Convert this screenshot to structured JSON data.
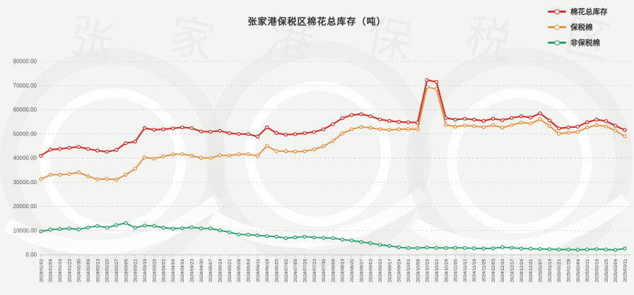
{
  "title": "张家港保税区棉花总库存（吨）",
  "legend": [
    {
      "label": "棉花总库存",
      "color": "#d5342b"
    },
    {
      "label": "保税棉",
      "color": "#e8913f"
    },
    {
      "label": "非保税棉",
      "color": "#27a169"
    }
  ],
  "watermark": {
    "text": "张家港保税区",
    "color": "#e7e7e6"
  },
  "chart_data": {
    "type": "line",
    "title": "张家港保税区棉花总库存（吨）",
    "ylabel": "",
    "xlabel": "",
    "ylim": [
      0,
      80000
    ],
    "grid": "horizontal-dashed",
    "legend_position": "top-right",
    "x_label_rotation": 90,
    "y_ticks": [
      "0.00",
      "10000.00",
      "20000.00",
      "30000.00",
      "40000.00",
      "50000.00",
      "60000.00",
      "70000.00",
      "80000.00"
    ],
    "x": [
      "2024/01/02",
      "2024/01/09",
      "2024/01/16",
      "2024/01/23",
      "2024/01/30",
      "2024/02/06",
      "2024/02/13",
      "2024/02/20",
      "2024/02/27",
      "2024/03/05",
      "2024/03/12",
      "2024/03/19",
      "2024/03/26",
      "2024/04/02",
      "2024/04/09",
      "2024/04/16",
      "2024/04/23",
      "2024/04/30",
      "2024/05/07",
      "2024/05/14",
      "2024/05/21",
      "2024/05/28",
      "2024/06/04",
      "2024/06/11",
      "2024/06/18",
      "2024/06/25",
      "2024/07/02",
      "2024/07/09",
      "2024/07/16",
      "2024/07/23",
      "2024/07/30",
      "2024/08/06",
      "2024/08/13",
      "2024/08/20",
      "2024/08/27",
      "2024/09/03",
      "2024/09/10",
      "2024/09/17",
      "2024/09/24",
      "2024/10/01",
      "2024/10/08",
      "2024/10/15",
      "2024/10/22",
      "2024/10/29",
      "2024/11/05",
      "2024/11/12",
      "2024/11/19",
      "2024/11/26",
      "2024/12/03",
      "2024/12/10",
      "2024/12/17",
      "2024/12/24",
      "2024/12/31",
      "2025/01/07",
      "2025/01/14",
      "2025/01/21",
      "2025/01/28",
      "2025/02/04",
      "2025/02/11",
      "2025/02/18",
      "2025/02/25",
      "2025/03/04",
      "2025/03/11"
    ],
    "series": [
      {
        "name": "棉花总库存",
        "color": "#d5342b",
        "values": [
          41000,
          43500,
          43800,
          44300,
          44600,
          43800,
          43100,
          42600,
          43400,
          46200,
          46800,
          52400,
          51700,
          51900,
          52300,
          52700,
          52400,
          51000,
          50900,
          51300,
          50300,
          50000,
          49900,
          48900,
          52700,
          50400,
          49700,
          49900,
          50300,
          50800,
          51900,
          54000,
          56500,
          57800,
          58200,
          57300,
          56000,
          55400,
          55000,
          54800,
          54700,
          72300,
          71500,
          56600,
          55900,
          56300,
          55900,
          55400,
          56300,
          55700,
          56600,
          57300,
          56800,
          58500,
          55600,
          52300,
          52700,
          53000,
          54800,
          55900,
          55300,
          53400,
          51600
        ]
      },
      {
        "name": "保税棉",
        "color": "#e8913f",
        "values": [
          31300,
          33100,
          33100,
          33400,
          34100,
          32500,
          31200,
          31400,
          31100,
          33100,
          35600,
          40300,
          39800,
          40700,
          41500,
          41700,
          41000,
          40100,
          40000,
          41200,
          41000,
          41600,
          41600,
          40900,
          45000,
          42900,
          42800,
          42700,
          42800,
          43600,
          44900,
          47100,
          50200,
          51900,
          52900,
          52500,
          51900,
          51700,
          51900,
          52000,
          51900,
          69300,
          68600,
          53800,
          53000,
          53500,
          53200,
          52800,
          53600,
          52600,
          53700,
          54700,
          54300,
          56100,
          53300,
          50100,
          50500,
          50900,
          52600,
          53600,
          53100,
          51400,
          49000
        ]
      },
      {
        "name": "非保税棉",
        "color": "#27a169",
        "values": [
          9700,
          10400,
          10700,
          10900,
          10500,
          11300,
          11900,
          11200,
          12300,
          13100,
          11200,
          12100,
          11900,
          11200,
          10800,
          11000,
          11400,
          10900,
          10900,
          10100,
          9300,
          8400,
          8300,
          8000,
          7700,
          7500,
          6900,
          7200,
          7500,
          7200,
          7000,
          6900,
          6300,
          5900,
          5300,
          4800,
          4100,
          3700,
          3100,
          2800,
          2800,
          3000,
          2900,
          2800,
          2900,
          2800,
          2700,
          2600,
          2700,
          3100,
          2900,
          2600,
          2500,
          2400,
          2300,
          2200,
          2200,
          2100,
          2200,
          2300,
          2200,
          2000,
          2600
        ]
      }
    ]
  }
}
